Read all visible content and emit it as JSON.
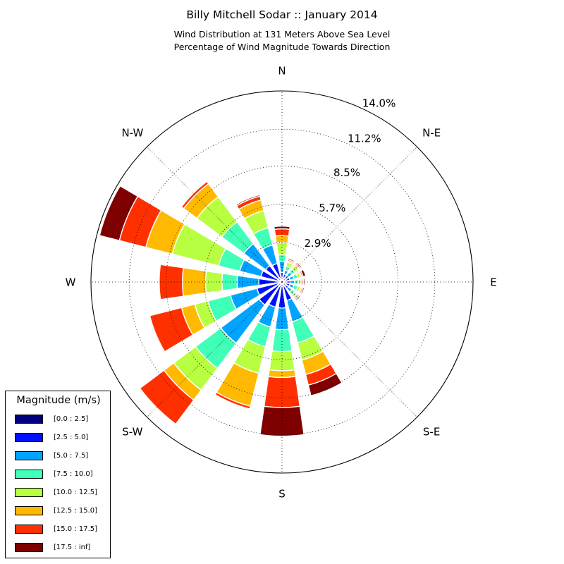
{
  "title": "Billy Mitchell Sodar :: January 2014",
  "subtitle_line1": "Wind Distribution at 131 Meters Above Sea Level",
  "subtitle_line2": "Percentage of Wind Magnitude Towards Direction",
  "chart_data": {
    "type": "windrose",
    "title": "Billy Mitchell Sodar :: January 2014",
    "subtitle": [
      "Wind Distribution at 131 Meters Above Sea Level",
      "Percentage of Wind Magnitude Towards Direction"
    ],
    "direction_labels": [
      "E",
      "N-E",
      "N",
      "N-W",
      "W",
      "S-W",
      "S",
      "S-E"
    ],
    "radial_tick_labels": [
      "2.9%",
      "5.7%",
      "8.5%",
      "11.2%",
      "14.0%"
    ],
    "radial_ticks": [
      2.9,
      5.7,
      8.5,
      11.2,
      14.0
    ],
    "rmax": 14.0,
    "grid": true,
    "legend_title": "Magnitude (m/s)",
    "legend_position": "lower-left",
    "bins": [
      "[0.0 : 2.5]",
      "[2.5 : 5.0]",
      "[5.0 : 7.5]",
      "[7.5 : 10.0]",
      "[10.0 : 12.5]",
      "[12.5 : 15.0]",
      "[15.0 : 17.5]",
      "[17.5 : inf]"
    ],
    "bin_colors": [
      "#00007f",
      "#0010ff",
      "#00a4ff",
      "#40ffb7",
      "#b7ff40",
      "#ffb900",
      "#ff3000",
      "#7f0000"
    ],
    "directions_deg": [
      0,
      22.5,
      45,
      67.5,
      90,
      112.5,
      135,
      157.5,
      180,
      202.5,
      225,
      247.5,
      270,
      292.5,
      315,
      337.5
    ],
    "segments": [
      [
        0.3,
        0.3,
        0.3,
        0.3,
        0.2,
        0.1,
        0.1,
        0.1
      ],
      [
        0.3,
        0.3,
        0.3,
        0.3,
        0.2,
        0.1,
        0.1,
        0.2
      ],
      [
        0.3,
        0.3,
        0.3,
        0.3,
        0.3,
        0.1,
        0.1,
        0.1
      ],
      [
        0.3,
        0.3,
        0.3,
        0.3,
        0.3,
        0.1,
        0.1,
        0.1
      ],
      [
        0.3,
        0.4,
        0.8,
        0.5,
        0.9,
        0.5,
        0.5,
        0.2
      ],
      [
        0.3,
        1.1,
        1.4,
        1.3,
        1.3,
        0.8,
        0.3,
        0.1
      ],
      [
        0.3,
        1.2,
        2.0,
        2.0,
        2.3,
        1.2,
        0.2,
        0.0
      ],
      [
        0.3,
        1.3,
        1.6,
        1.6,
        3.5,
        2.0,
        2.0,
        1.5
      ],
      [
        0.3,
        1.4,
        1.6,
        1.1,
        1.2,
        1.7,
        1.7,
        0.0
      ],
      [
        0.3,
        1.6,
        2.0,
        1.7,
        1.0,
        1.0,
        2.4,
        0.0
      ],
      [
        0.3,
        1.8,
        3.5,
        2.3,
        2.0,
        0.9,
        2.2,
        0.0
      ],
      [
        0.3,
        1.6,
        1.5,
        1.5,
        2.0,
        2.5,
        0.2,
        0.0
      ],
      [
        0.3,
        1.6,
        1.6,
        1.6,
        1.4,
        0.5,
        2.2,
        2.1
      ],
      [
        0.3,
        1.1,
        1.6,
        1.6,
        1.3,
        1.1,
        0.8,
        0.8
      ],
      [
        0.3,
        0.3,
        0.3,
        0.3,
        0.2,
        0.1,
        0.1,
        0.1
      ],
      [
        0.3,
        0.3,
        0.3,
        0.3,
        0.2,
        0.1,
        0.1,
        0.1
      ]
    ]
  }
}
